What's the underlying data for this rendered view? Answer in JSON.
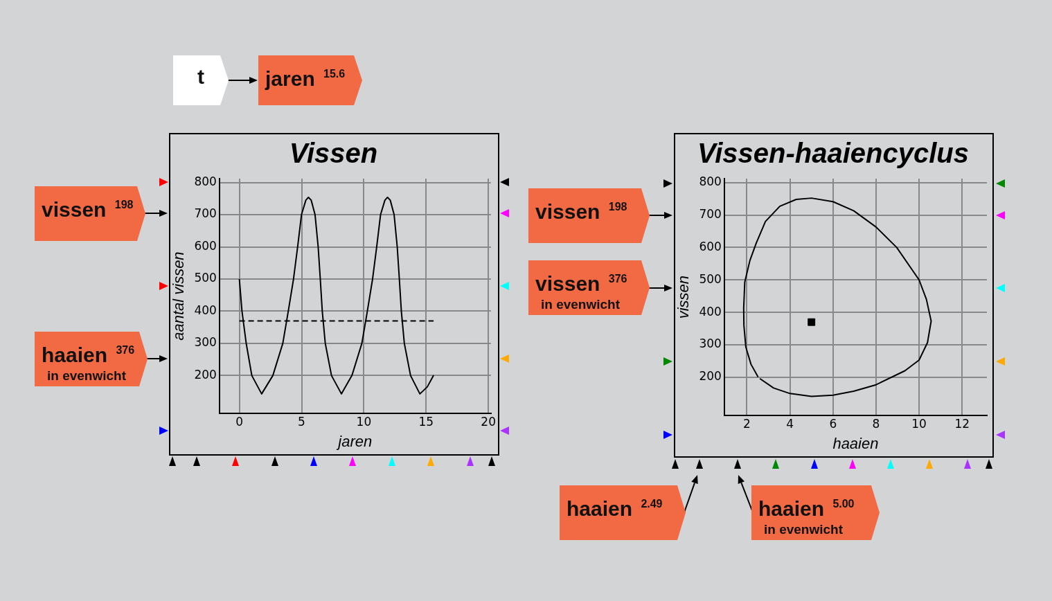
{
  "chart_data": [
    {
      "type": "line",
      "title": "Vissen",
      "xlabel": "jaren",
      "ylabel": "aantal vissen",
      "xlim": [
        -1.6,
        20.2
      ],
      "ylim": [
        82,
        812
      ],
      "xticks": [
        0,
        5,
        10,
        15,
        20
      ],
      "yticks": [
        200,
        300,
        400,
        500,
        600,
        700,
        800
      ],
      "grid": true,
      "series": [
        {
          "color": "#000000",
          "x": [
            0,
            0.21,
            0.55,
            1.0,
            1.79,
            2.69,
            3.49,
            3.93,
            4.35,
            4.68,
            4.99,
            5.34,
            5.55,
            5.77,
            6.08,
            6.33,
            6.5,
            6.66,
            6.9,
            7.4,
            8.2,
            9.04,
            9.84,
            10.28,
            10.7,
            11.03,
            11.34,
            11.69,
            11.9,
            12.12,
            12.43,
            12.68,
            12.85,
            13.01,
            13.25,
            13.75,
            14.5,
            15.1,
            15.6
          ],
          "values": [
            500,
            400,
            300,
            200,
            143,
            200,
            300,
            400,
            500,
            600,
            700,
            745,
            754,
            745,
            700,
            600,
            500,
            400,
            300,
            200,
            143,
            200,
            300,
            400,
            500,
            600,
            700,
            745,
            754,
            745,
            700,
            600,
            500,
            400,
            300,
            200,
            143,
            165,
            201
          ]
        },
        {
          "color": "#000000",
          "x": [
            0,
            15.6
          ],
          "values": [
            370,
            370
          ],
          "line_style": "dashed"
        }
      ],
      "annotations": [
        "t",
        "jaren $^{15.6}$",
        "vissen $^{198}$",
        "haaien $^{376}$\nin evenwicht"
      ]
    },
    {
      "type": "line",
      "title": "Vissen-haaiencyclus",
      "xlabel": "haaien",
      "ylabel": "vissen",
      "xlim": [
        0.95,
        13.15
      ],
      "ylim": [
        82,
        812
      ],
      "xticks": [
        2,
        4,
        6,
        8,
        10,
        12
      ],
      "yticks": [
        200,
        300,
        400,
        500,
        600,
        700,
        800
      ],
      "grid": true,
      "series": [
        {
          "color": "#000000",
          "x": [
            2.52,
            2.19,
            1.95,
            1.86,
            1.85,
            1.9,
            2.14,
            2.43,
            2.86,
            3.53,
            4.29,
            5.0,
            6.0,
            6.96,
            8.0,
            8.96,
            10.0,
            10.34,
            10.56,
            10.39,
            10.0,
            9.34,
            8.0,
            6.96,
            6.0,
            5.0,
            4.0,
            3.24,
            2.6
          ],
          "values": [
            201,
            240,
            293,
            360,
            413,
            493,
            560,
            613,
            680,
            727,
            748,
            752,
            741,
            713,
            663,
            600,
            500,
            440,
            373,
            307,
            253,
            220,
            177,
            157,
            145,
            141,
            150,
            167,
            196
          ]
        },
        {
          "type": "scatter",
          "color": "#000000",
          "x": [
            5.0
          ],
          "values": [
            370
          ],
          "marker": "square"
        }
      ],
      "annotations": [
        "vissen $^{198}$",
        "vissen $^{376}$\nin evenwicht",
        "haaien $^{2.49}$",
        "haaien $^{5.00}$\nin evenwicht"
      ]
    }
  ]
}
